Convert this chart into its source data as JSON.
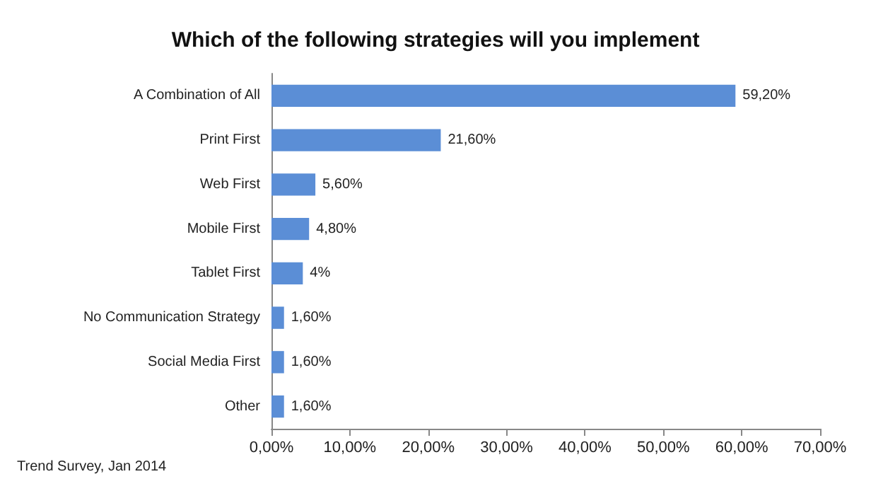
{
  "chart_data": {
    "type": "bar",
    "orientation": "horizontal",
    "title": "Which of the following strategies will you implement",
    "categories": [
      "A Combination of All",
      "Print First",
      "Web First",
      "Mobile First",
      "Tablet First",
      "No Communication Strategy",
      "Social Media First",
      "Other"
    ],
    "values": [
      59.2,
      21.6,
      5.6,
      4.8,
      4,
      1.6,
      1.6,
      1.6
    ],
    "value_labels": [
      "59,20%",
      "21,60%",
      "5,60%",
      "4,80%",
      "4%",
      "1,60%",
      "1,60%",
      "1,60%"
    ],
    "color": "#5b8ed6",
    "xlim": [
      0,
      70
    ],
    "xticks": [
      {
        "value": 0,
        "label": "0,00%"
      },
      {
        "value": 10,
        "label": "10,00%"
      },
      {
        "value": 20,
        "label": "20,00%"
      },
      {
        "value": 30,
        "label": "30,00%"
      },
      {
        "value": 40,
        "label": "40,00%"
      },
      {
        "value": 50,
        "label": "50,00%"
      },
      {
        "value": 60,
        "label": "60,00%"
      },
      {
        "value": 70,
        "label": "70,00%"
      }
    ],
    "grid": false,
    "annotations": [
      "Trend Survey, Jan 2014"
    ]
  }
}
